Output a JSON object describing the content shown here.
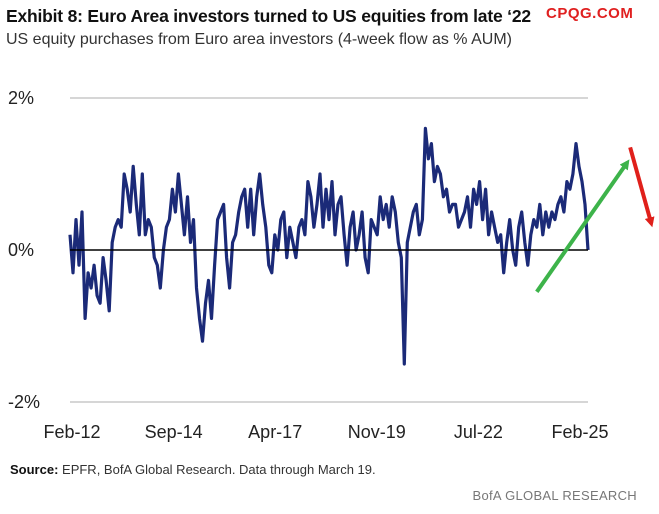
{
  "header": {
    "title": "Exhibit 8: Euro Area investors turned to US equities from late ‘22",
    "subtitle": "US equity purchases from Euro area investors (4-week flow as % AUM)"
  },
  "watermark": "CPQG.COM",
  "footer": {
    "source_label": "Source:",
    "source_text": " EPFR, BofA Global Research. Data through March 19.",
    "brand": "BofA GLOBAL RESEARCH"
  },
  "colors": {
    "series": "#1b2a78",
    "up_arrow": "#3db34a",
    "down_arrow": "#e0201b",
    "grid": "#bdbdbd",
    "zero_line": "#000000"
  },
  "chart_data": {
    "type": "line",
    "title": "Exhibit 8: Euro Area investors turned to US equities from late ‘22",
    "subtitle": "US equity purchases from Euro area investors (4-week flow as % AUM)",
    "xlabel": "",
    "ylabel": "",
    "x_tick_labels": [
      "Feb-12",
      "Sep-14",
      "Apr-17",
      "Nov-19",
      "Jul-22",
      "Feb-25"
    ],
    "y_tick_labels": [
      "2%",
      "0%",
      "-2%"
    ],
    "y_ticks": [
      2,
      0,
      -2
    ],
    "ylim": [
      -2,
      2
    ],
    "grid": true,
    "series": [
      {
        "values": [
          0.2,
          -0.3,
          0.4,
          -0.2,
          0.5,
          -0.9,
          -0.3,
          -0.5,
          -0.2,
          -0.6,
          -0.7,
          -0.1,
          -0.4,
          -0.8,
          0.1,
          0.3,
          0.4,
          0.3,
          1.0,
          0.8,
          0.5,
          1.1,
          0.6,
          0.2,
          1.0,
          0.2,
          0.4,
          0.3,
          -0.1,
          -0.2,
          -0.5,
          0.0,
          0.3,
          0.4,
          0.8,
          0.5,
          1.0,
          0.6,
          0.2,
          0.7,
          0.1,
          0.4,
          -0.5,
          -0.9,
          -1.2,
          -0.7,
          -0.4,
          -0.9,
          -0.2,
          0.4,
          0.5,
          0.6,
          -0.1,
          -0.5,
          0.1,
          0.2,
          0.5,
          0.7,
          0.8,
          0.3,
          0.8,
          0.2,
          0.7,
          1.0,
          0.6,
          0.3,
          -0.2,
          -0.3,
          0.2,
          0.0,
          0.4,
          0.5,
          -0.1,
          0.3,
          0.1,
          -0.1,
          0.3,
          0.4,
          0.2,
          0.9,
          0.7,
          0.3,
          0.6,
          1.0,
          0.3,
          0.8,
          0.4,
          0.9,
          0.2,
          0.6,
          0.7,
          0.2,
          -0.2,
          0.3,
          0.5,
          0.0,
          0.2,
          0.5,
          -0.1,
          -0.3,
          0.4,
          0.3,
          0.2,
          0.7,
          0.4,
          0.6,
          0.3,
          0.7,
          0.5,
          0.1,
          -0.1,
          -1.5,
          0.1,
          0.3,
          0.5,
          0.6,
          0.2,
          0.4,
          1.6,
          1.2,
          1.4,
          0.9,
          1.1,
          1.0,
          0.7,
          0.8,
          0.5,
          0.6,
          0.6,
          0.3,
          0.4,
          0.5,
          0.7,
          0.3,
          0.8,
          0.6,
          0.9,
          0.4,
          0.8,
          0.2,
          0.5,
          0.3,
          0.1,
          0.2,
          -0.3,
          0.1,
          0.4,
          0.0,
          -0.2,
          0.3,
          0.5,
          0.1,
          -0.2,
          0.2,
          0.4,
          0.3,
          0.6,
          0.2,
          0.5,
          0.3,
          0.5,
          0.4,
          0.6,
          0.7,
          0.5,
          0.9,
          0.8,
          1.0,
          1.4,
          1.1,
          0.9,
          0.6,
          0.0
        ]
      }
    ],
    "annotations": [
      {
        "type": "arrow",
        "direction": "up",
        "color": "green",
        "from_date_index": 155,
        "to_date_index": 185,
        "from_y": -0.55,
        "to_y": 1.15
      },
      {
        "type": "arrow",
        "direction": "down",
        "color": "red",
        "from_date_index": 186,
        "to_date_index": 193,
        "from_y": 1.35,
        "to_y": 0.35
      }
    ]
  }
}
